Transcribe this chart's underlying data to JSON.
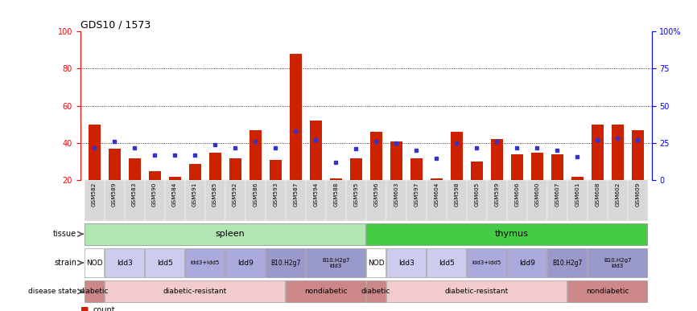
{
  "title": "GDS10 / 1573",
  "samples": [
    "GSM582",
    "GSM589",
    "GSM583",
    "GSM590",
    "GSM584",
    "GSM591",
    "GSM585",
    "GSM592",
    "GSM586",
    "GSM593",
    "GSM587",
    "GSM594",
    "GSM588",
    "GSM595",
    "GSM596",
    "GSM603",
    "GSM597",
    "GSM604",
    "GSM598",
    "GSM605",
    "GSM599",
    "GSM606",
    "GSM600",
    "GSM607",
    "GSM601",
    "GSM608",
    "GSM602",
    "GSM609"
  ],
  "counts": [
    50,
    37,
    32,
    25,
    22,
    29,
    35,
    32,
    47,
    31,
    88,
    52,
    21,
    32,
    46,
    41,
    32,
    21,
    46,
    30,
    42,
    34,
    35,
    34,
    22,
    50,
    50,
    47
  ],
  "percentile_ranks": [
    22,
    26,
    22,
    17,
    17,
    17,
    24,
    22,
    26,
    22,
    33,
    27,
    12,
    21,
    26,
    25,
    20,
    15,
    25,
    22,
    26,
    22,
    22,
    20,
    16,
    27,
    28,
    27
  ],
  "bar_color": "#cc2200",
  "dot_color": "#3333cc",
  "spleen_color": "#b2e6b2",
  "thymus_color": "#44cc44",
  "strain_colors": {
    "NOD": "#ffffff",
    "Idd3": "#ccccee",
    "Idd5": "#ccccee",
    "Idd3+Idd5": "#aaaadd",
    "Idd9": "#aaaadd",
    "B10.H2g7": "#9999cc",
    "B10.H2g7_Idd3": "#9999cc"
  },
  "disease_diabetic_color": "#cc8888",
  "disease_resistant_color": "#f2cccc",
  "disease_nondiabetic_color": "#cc8888",
  "ylim_left": [
    20,
    100
  ],
  "ylim_right": [
    0,
    100
  ],
  "yticks_left": [
    20,
    40,
    60,
    80,
    100
  ],
  "ytick_labels_left": [
    "20",
    "40",
    "60",
    "80",
    "100"
  ],
  "yticks_right": [
    0,
    25,
    50,
    75,
    100
  ],
  "ytick_labels_right": [
    "0",
    "25",
    "50",
    "75",
    "100%"
  ],
  "grid_values": [
    40,
    60,
    80
  ],
  "tick_fontsize": 7,
  "bar_fontsize": 5.5,
  "label_fontsize": 7,
  "annotation_fontsize": 7.5,
  "strain_groups_spleen": [
    {
      "label": "NOD",
      "start": 0,
      "end": 0,
      "color": "#ffffff"
    },
    {
      "label": "Idd3",
      "start": 1,
      "end": 2,
      "color": "#ccccee"
    },
    {
      "label": "Idd5",
      "start": 3,
      "end": 4,
      "color": "#ccccee"
    },
    {
      "label": "Idd3+Idd5",
      "start": 5,
      "end": 6,
      "color": "#aaaadd"
    },
    {
      "label": "Idd9",
      "start": 7,
      "end": 8,
      "color": "#aaaadd"
    },
    {
      "label": "B10.H2g7",
      "start": 9,
      "end": 10,
      "color": "#9999cc"
    },
    {
      "label": "B10.H2g7\nIdd3",
      "start": 11,
      "end": 13,
      "color": "#9999cc"
    }
  ],
  "strain_groups_thymus": [
    {
      "label": "NOD",
      "start": 14,
      "end": 14,
      "color": "#ffffff"
    },
    {
      "label": "Idd3",
      "start": 15,
      "end": 16,
      "color": "#ccccee"
    },
    {
      "label": "Idd5",
      "start": 17,
      "end": 18,
      "color": "#ccccee"
    },
    {
      "label": "Idd3+Idd5",
      "start": 19,
      "end": 20,
      "color": "#aaaadd"
    },
    {
      "label": "Idd9",
      "start": 21,
      "end": 22,
      "color": "#aaaadd"
    },
    {
      "label": "B10.H2g7",
      "start": 23,
      "end": 24,
      "color": "#9999cc"
    },
    {
      "label": "B10.H2g7\nIdd3",
      "start": 25,
      "end": 27,
      "color": "#9999cc"
    }
  ],
  "disease_groups": [
    {
      "label": "diabetic",
      "start": 0,
      "end": 0,
      "color": "#cc8888"
    },
    {
      "label": "diabetic-resistant",
      "start": 1,
      "end": 9,
      "color": "#f2cccc"
    },
    {
      "label": "nondiabetic",
      "start": 10,
      "end": 13,
      "color": "#cc8888"
    },
    {
      "label": "diabetic",
      "start": 14,
      "end": 14,
      "color": "#cc8888"
    },
    {
      "label": "diabetic-resistant",
      "start": 15,
      "end": 23,
      "color": "#f2cccc"
    },
    {
      "label": "nondiabetic",
      "start": 24,
      "end": 27,
      "color": "#cc8888"
    }
  ]
}
